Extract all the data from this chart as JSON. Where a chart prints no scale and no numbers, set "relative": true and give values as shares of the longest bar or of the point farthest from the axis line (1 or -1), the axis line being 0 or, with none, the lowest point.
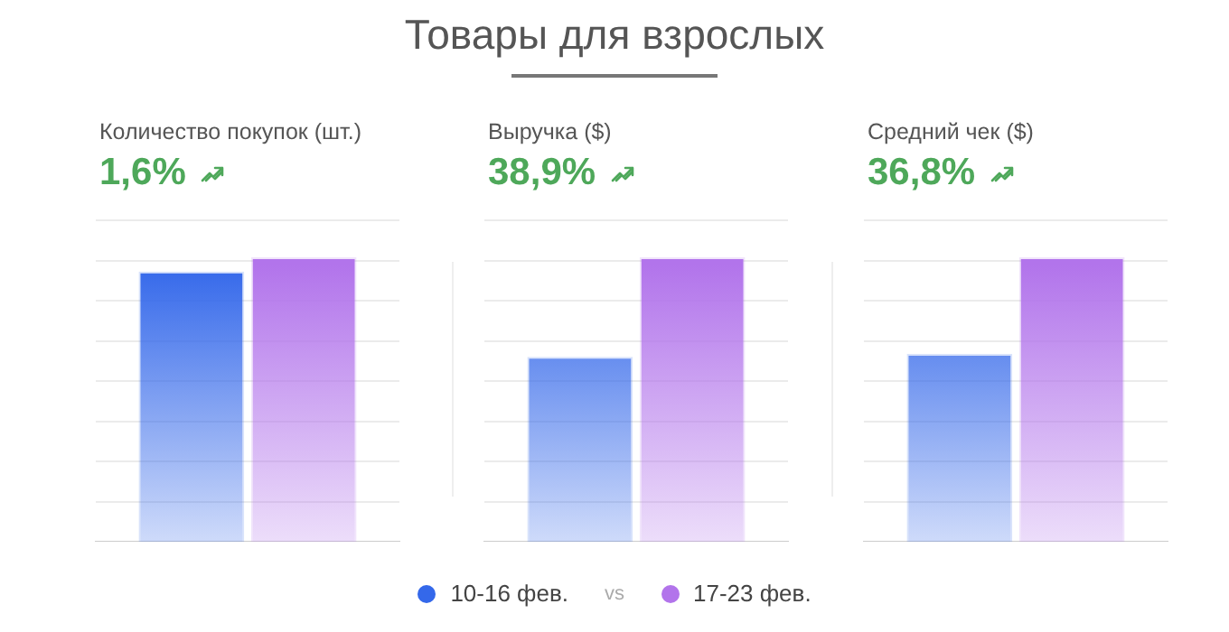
{
  "chart_data": [
    {
      "type": "bar",
      "subtitle": "Количество покупок (шт.)",
      "annotations": [
        "1,6%"
      ],
      "categories": [
        null
      ],
      "relative": true,
      "grid": "y",
      "series": [
        {
          "color": "#3468ea",
          "values": [
            0.95
          ]
        },
        {
          "color": "#b274eb",
          "values": [
            1
          ]
        }
      ]
    },
    {
      "type": "bar",
      "title": "Товары для взрослых",
      "subtitle": "Выручка ($)",
      "annotations": [
        "38,9%",
        "vs"
      ],
      "categories": [
        null
      ],
      "relative": true,
      "grid": "y",
      "legend": "bottom",
      "series": [
        {
          "name": "10-16 фев.",
          "color": "#3468ea",
          "values": [
            0.65
          ]
        },
        {
          "name": "17-23 фев.",
          "color": "#b274eb",
          "values": [
            1
          ]
        }
      ]
    },
    {
      "type": "bar",
      "subtitle": "Средний чек ($)",
      "annotations": [
        "36,8%"
      ],
      "categories": [
        null
      ],
      "relative": true,
      "grid": "y",
      "series": [
        {
          "color": "#3468ea",
          "values": [
            0.66
          ]
        },
        {
          "color": "#b274eb",
          "values": [
            1
          ]
        }
      ]
    }
  ]
}
